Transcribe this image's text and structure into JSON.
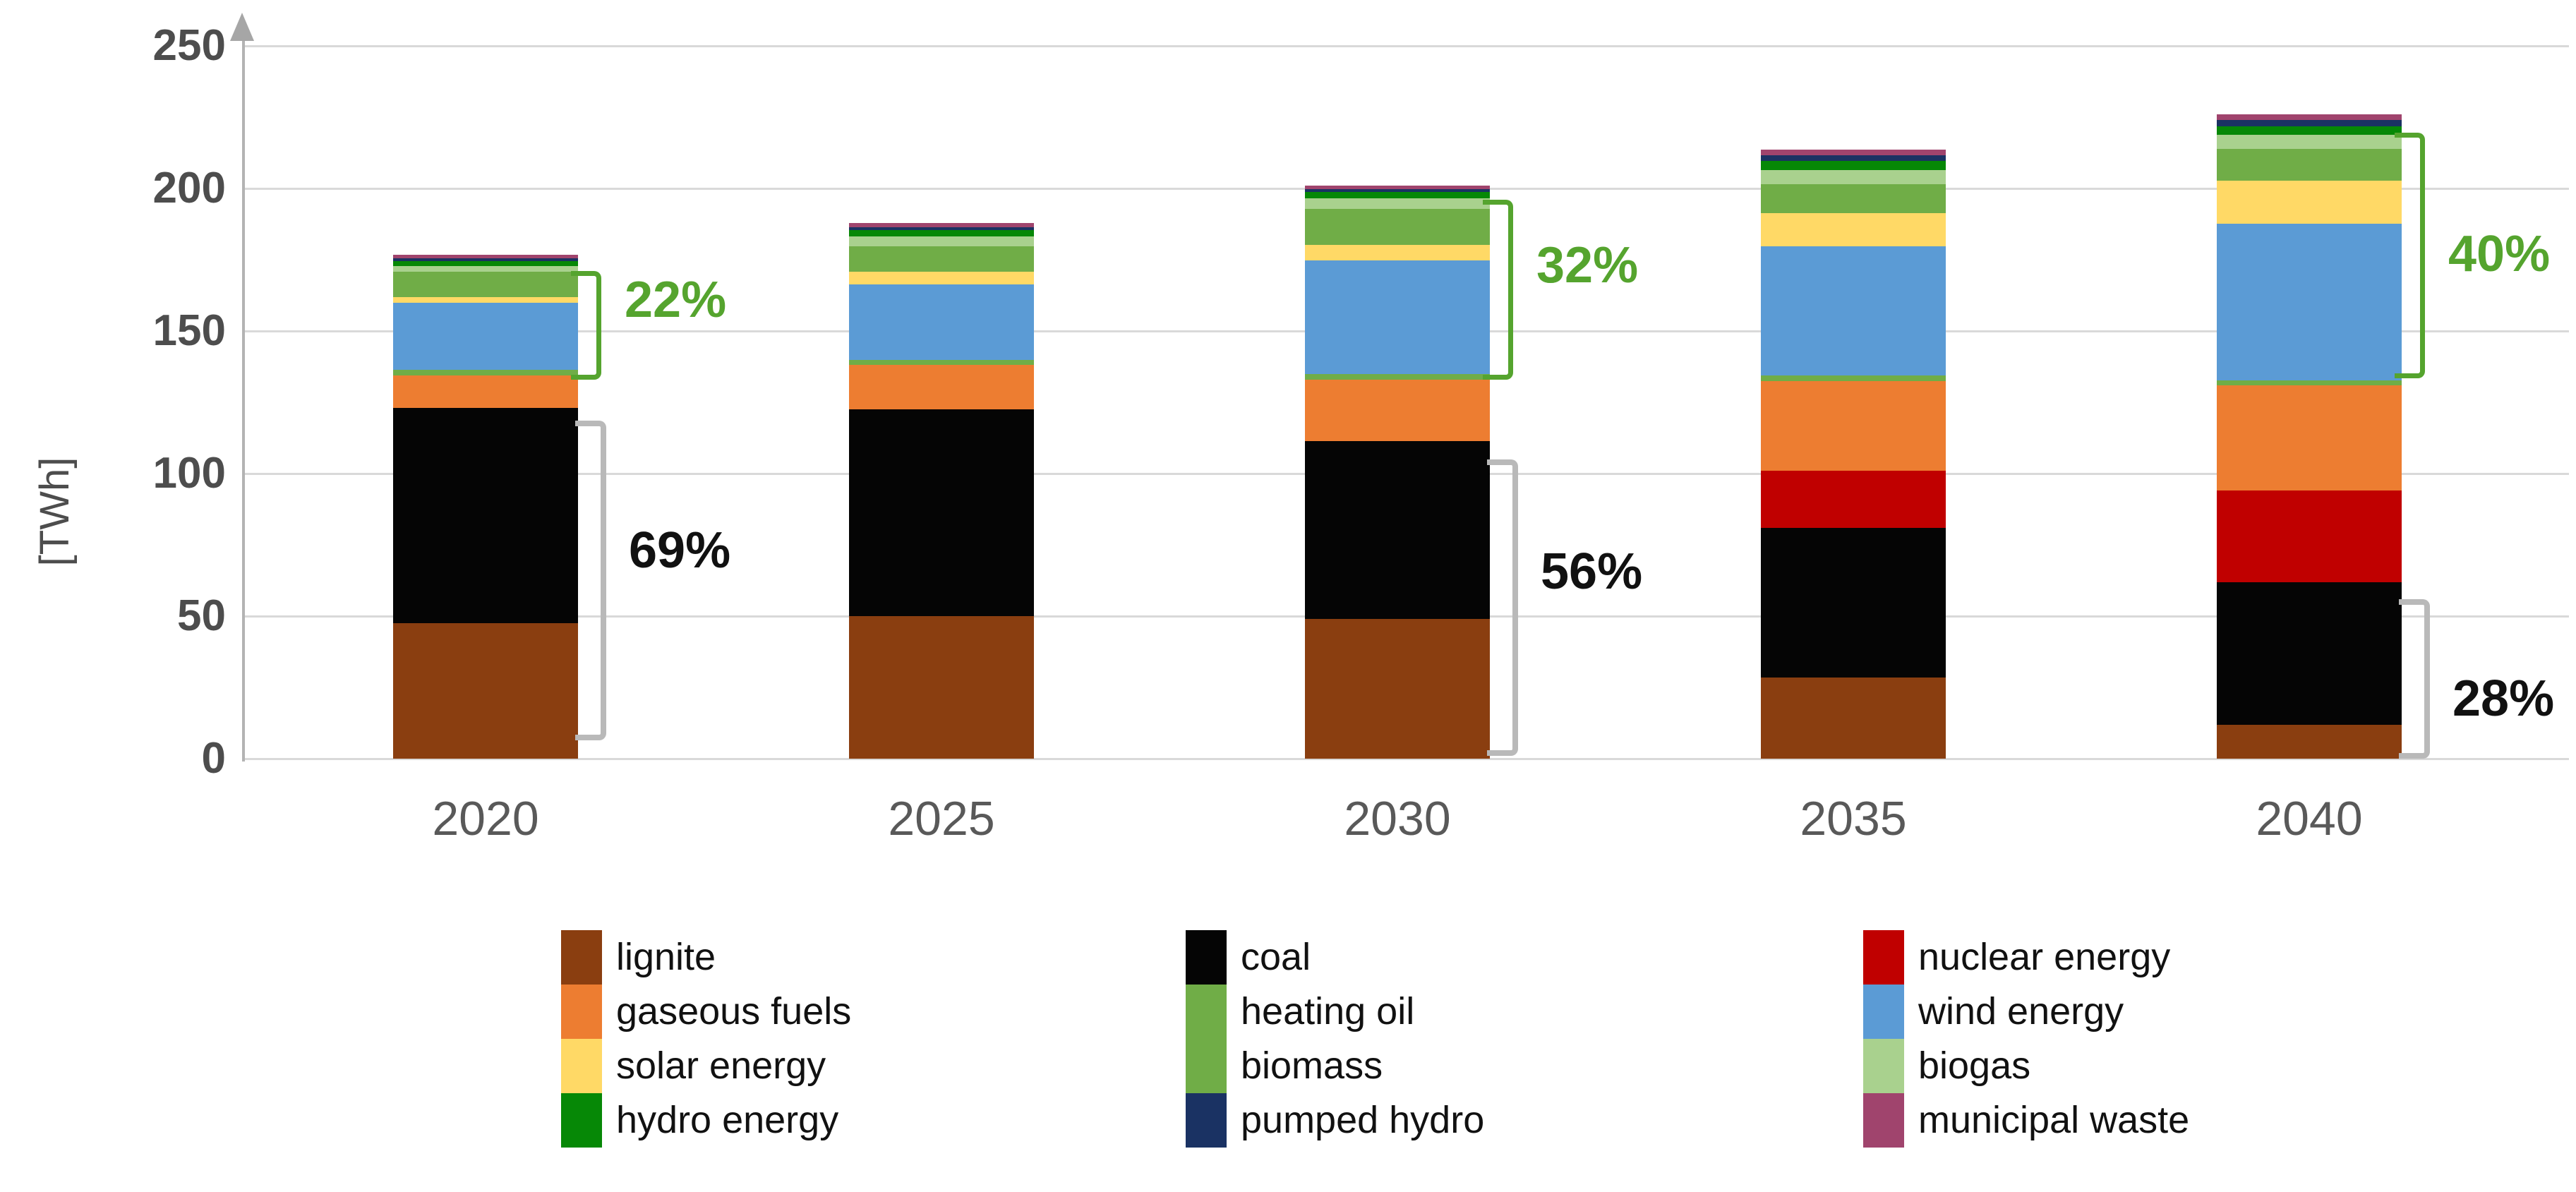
{
  "chart_data": {
    "type": "bar",
    "stacked": true,
    "title": "",
    "ylabel": "[TWh]",
    "xlabel": "",
    "grid": true,
    "legend_position": "bottom",
    "ylim": [
      0,
      250
    ],
    "y_ticks": [
      0,
      50,
      100,
      150,
      200,
      250
    ],
    "categories": [
      "2020",
      "2025",
      "2030",
      "2035",
      "2040"
    ],
    "series": [
      {
        "name": "lignite",
        "color": "#8a3e10",
        "values": [
          47.5,
          50.0,
          49.0,
          28.5,
          12.0
        ]
      },
      {
        "name": "coal",
        "color": "#050505",
        "values": [
          75.5,
          72.5,
          62.5,
          52.5,
          50.0
        ]
      },
      {
        "name": "nuclear energy",
        "color": "#c00000",
        "values": [
          0,
          0,
          0,
          20.0,
          32.0
        ]
      },
      {
        "name": "gaseous fuels",
        "color": "#ed7d31",
        "values": [
          11.5,
          15.5,
          21.5,
          31.5,
          37.0
        ]
      },
      {
        "name": "heating oil",
        "color": "#70ad47",
        "values": [
          1.8,
          1.8,
          1.8,
          1.8,
          1.6
        ]
      },
      {
        "name": "wind energy",
        "color": "#5b9bd5",
        "values": [
          23.5,
          26.5,
          40.0,
          45.5,
          55.0
        ]
      },
      {
        "name": "solar energy",
        "color": "#ffd966",
        "values": [
          2.0,
          4.5,
          5.3,
          11.5,
          15.0
        ]
      },
      {
        "name": "biomass",
        "color": "#70ad47",
        "values": [
          9.0,
          9.0,
          12.8,
          10.2,
          11.2
        ]
      },
      {
        "name": "biogas",
        "color": "#a9d18e",
        "values": [
          1.9,
          3.3,
          3.6,
          4.9,
          5.1
        ]
      },
      {
        "name": "hydro energy",
        "color": "#068806",
        "values": [
          1.9,
          2.2,
          2.2,
          3.3,
          2.8
        ]
      },
      {
        "name": "pumped hydro",
        "color": "#1a3263",
        "values": [
          1.0,
          1.1,
          1.0,
          1.9,
          2.4
        ]
      },
      {
        "name": "municipal waste",
        "color": "#a0446d",
        "values": [
          1.2,
          1.4,
          1.4,
          2.1,
          1.9
        ]
      }
    ],
    "annotations": [
      {
        "category": "2020",
        "text": "22%",
        "kind": "res",
        "top": 171.0,
        "bottom": 136.5,
        "label_at": 161
      },
      {
        "category": "2020",
        "text": "69%",
        "kind": "fossil",
        "top": 118.5,
        "bottom": 10.5,
        "label_at": 73
      },
      {
        "category": "2030",
        "text": "32%",
        "kind": "res",
        "top": 196.0,
        "bottom": 136.5,
        "label_at": 173
      },
      {
        "category": "2030",
        "text": "56%",
        "kind": "fossil",
        "top": 105.0,
        "bottom": 5.0,
        "label_at": 65.5
      },
      {
        "category": "2040",
        "text": "40%",
        "kind": "res",
        "top": 219.5,
        "bottom": 137.0,
        "label_at": 177
      },
      {
        "category": "2040",
        "text": "28%",
        "kind": "fossil",
        "top": 56.0,
        "bottom": 4.0,
        "label_at": 21
      }
    ],
    "annotation_styles": {
      "res": {
        "stroke": "#55a42e",
        "text_color": "#55a42e"
      },
      "fossil": {
        "stroke": "#b9b9b9",
        "text_color": "#111111"
      }
    },
    "legend_columns": [
      [
        {
          "label": "lignite",
          "color": "#8a3e10"
        },
        {
          "label": "gaseous fuels",
          "color": "#ed7d31"
        },
        {
          "label": "solar energy",
          "color": "#ffd966"
        },
        {
          "label": "hydro energy",
          "color": "#068806"
        }
      ],
      [
        {
          "label": "coal",
          "color": "#050505"
        },
        {
          "label": "heating oil",
          "color": "#70ad47"
        },
        {
          "label": "biomass",
          "color": "#70ad47"
        },
        {
          "label": "pumped hydro",
          "color": "#1a3263"
        }
      ],
      [
        {
          "label": "nuclear energy",
          "color": "#c00000"
        },
        {
          "label": "wind energy",
          "color": "#5b9bd5"
        },
        {
          "label": "biogas",
          "color": "#a9d18e"
        },
        {
          "label": "municipal waste",
          "color": "#a0446d"
        }
      ]
    ]
  }
}
